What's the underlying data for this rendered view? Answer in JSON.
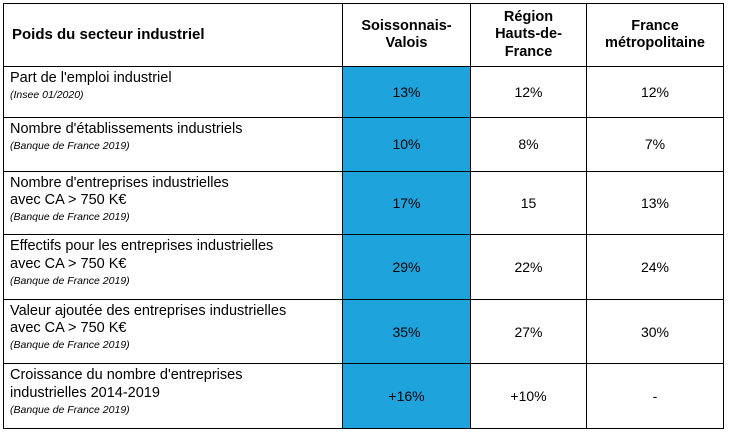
{
  "table": {
    "header": {
      "col0": "Poids du secteur industriel",
      "col1": "Soissonnais-\nValois",
      "col2": "Région\nHauts-de-\nFrance",
      "col3": "France\nmétropolitaine"
    },
    "highlight_color": "#1ea3dd",
    "rows": [
      {
        "label": "Part de l'emploi industriel",
        "source": "(Insee 01/2020)",
        "v1": "13%",
        "v2": "12%",
        "v3": "12%"
      },
      {
        "label": "Nombre d'établissements industriels",
        "source": "(Banque de France 2019)",
        "v1": "10%",
        "v2": "8%",
        "v3": "7%"
      },
      {
        "label": "Nombre d'entreprises industrielles\navec CA > 750 K€",
        "source": "(Banque de France 2019)",
        "v1": "17%",
        "v2": "15",
        "v3": "13%"
      },
      {
        "label": "Effectifs pour les entreprises industrielles\navec CA > 750 K€",
        "source": "(Banque de France 2019)",
        "v1": "29%",
        "v2": "22%",
        "v3": "24%"
      },
      {
        "label": "Valeur ajoutée des entreprises industrielles\navec CA > 750 K€",
        "source": "(Banque de France 2019)",
        "v1": "35%",
        "v2": "27%",
        "v3": "30%"
      },
      {
        "label": "Croissance du nombre d'entreprises\nindustrielles 2014-2019",
        "source": "(Banque de France 2019)",
        "v1": "+16%",
        "v2": "+10%",
        "v3": "-"
      }
    ]
  }
}
